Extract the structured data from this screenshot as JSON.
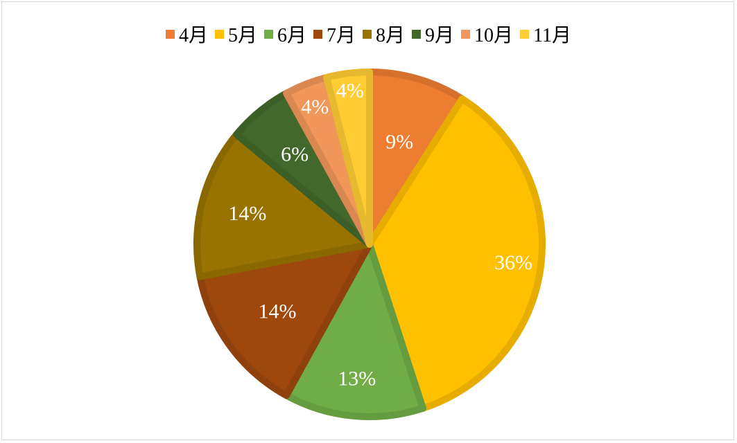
{
  "chart_data": {
    "type": "pie",
    "title": "",
    "legend_position": "top",
    "slices": [
      {
        "name": "4月",
        "value": 9,
        "label": "9%",
        "color": "#ED7D31"
      },
      {
        "name": "5月",
        "value": 36,
        "label": "36%",
        "color": "#FFC000"
      },
      {
        "name": "6月",
        "value": 13,
        "label": "13%",
        "color": "#70AD47"
      },
      {
        "name": "7月",
        "value": 14,
        "label": "14%",
        "color": "#9E480E"
      },
      {
        "name": "8月",
        "value": 14,
        "label": "14%",
        "color": "#997300"
      },
      {
        "name": "9月",
        "value": 6,
        "label": "6%",
        "color": "#43682B"
      },
      {
        "name": "10月",
        "value": 4,
        "label": "4%",
        "color": "#F1975A"
      },
      {
        "name": "11月",
        "value": 4,
        "label": "4%",
        "color": "#FFCD33"
      }
    ]
  }
}
